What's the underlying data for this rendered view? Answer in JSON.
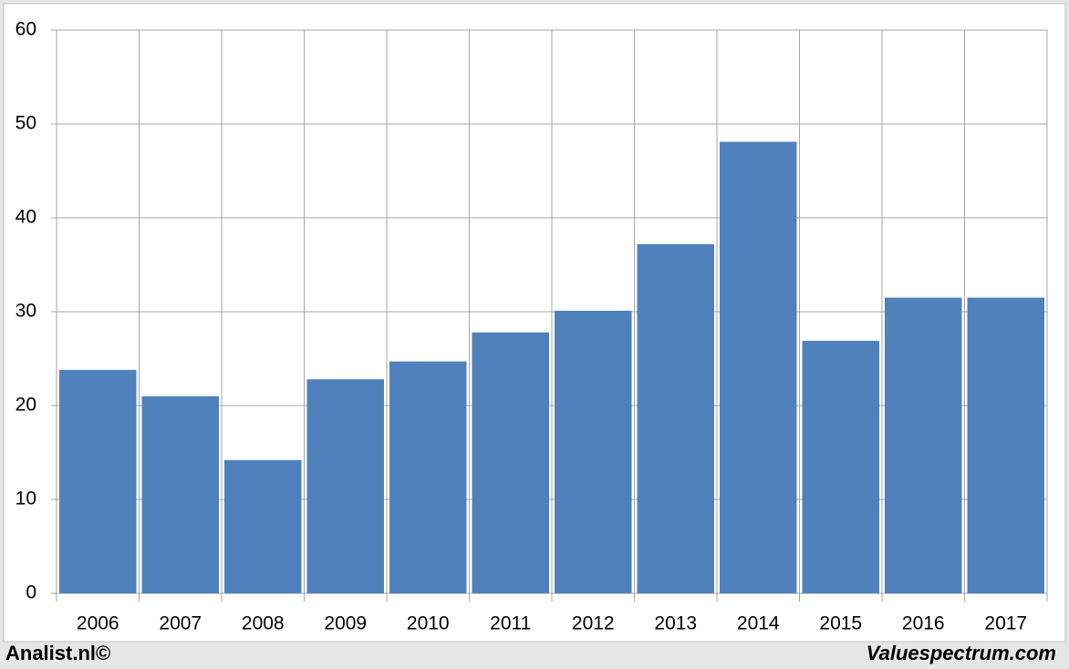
{
  "chart_data": {
    "type": "bar",
    "categories": [
      "2006",
      "2007",
      "2008",
      "2009",
      "2010",
      "2011",
      "2012",
      "2013",
      "2014",
      "2015",
      "2016",
      "2017"
    ],
    "values": [
      23.8,
      21.0,
      14.2,
      22.8,
      24.7,
      27.8,
      30.1,
      37.2,
      48.1,
      26.9,
      31.5,
      31.5
    ],
    "color": "#4f81bd",
    "ylim": [
      0,
      60
    ],
    "yticks": [
      0,
      10,
      20,
      30,
      40,
      50,
      60
    ],
    "grid": true,
    "footer_left": "Analist.nl©",
    "footer_right": "Valuespectrum.com"
  }
}
